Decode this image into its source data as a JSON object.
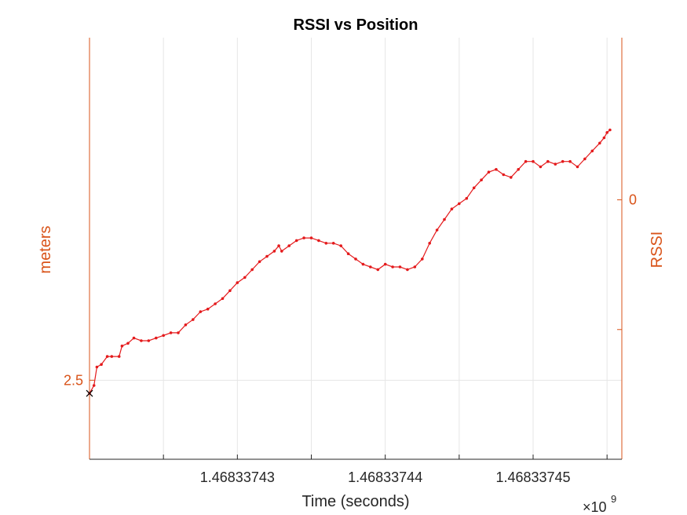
{
  "chart_data": {
    "type": "line",
    "title": "RSSI vs Position",
    "xlabel": "Time (seconds)",
    "x_exponent_base": "×10",
    "x_exponent_power": "9",
    "ylabel_left": "meters",
    "ylabel_right": "RSSI",
    "xlim": [
      1.46833742,
      1.468337456
    ],
    "x_ticks": [
      1.468337425,
      1.46833743,
      1.468337435,
      1.46833744,
      1.468337445,
      1.46833745,
      1.468337455
    ],
    "x_tick_labels": [
      "",
      "1.46833743",
      "",
      "1.46833744",
      "",
      "1.46833745",
      ""
    ],
    "left_ylim": [
      2.2,
      3.8
    ],
    "left_ticks": [
      2.5
    ],
    "left_tick_labels": [
      "2.5"
    ],
    "right_ylim": [
      -2.0,
      1.25
    ],
    "right_ticks": [
      -1,
      0
    ],
    "right_tick_labels": [
      "",
      "0"
    ],
    "grid": true,
    "colors": {
      "series": "#e41a1c",
      "axis_left": "#d95319",
      "axis_right": "#d95319",
      "grid": "#e6e6e6",
      "marker": "#000000"
    },
    "series": [
      {
        "points": [
          [
            1.46833742,
            2.45
          ],
          [
            1.4683374203,
            2.48
          ],
          [
            1.4683374205,
            2.55
          ],
          [
            1.4683374208,
            2.56
          ],
          [
            1.4683374212,
            2.59
          ],
          [
            1.4683374215,
            2.59
          ],
          [
            1.468337422,
            2.59
          ],
          [
            1.4683374222,
            2.63
          ],
          [
            1.4683374226,
            2.64
          ],
          [
            1.468337423,
            2.66
          ],
          [
            1.4683374235,
            2.65
          ],
          [
            1.468337424,
            2.65
          ],
          [
            1.4683374245,
            2.66
          ],
          [
            1.468337425,
            2.67
          ],
          [
            1.4683374255,
            2.68
          ],
          [
            1.468337426,
            2.68
          ],
          [
            1.4683374265,
            2.71
          ],
          [
            1.468337427,
            2.73
          ],
          [
            1.4683374275,
            2.76
          ],
          [
            1.468337428,
            2.77
          ],
          [
            1.4683374285,
            2.79
          ],
          [
            1.468337429,
            2.81
          ],
          [
            1.4683374295,
            2.84
          ],
          [
            1.46833743,
            2.87
          ],
          [
            1.4683374305,
            2.89
          ],
          [
            1.468337431,
            2.92
          ],
          [
            1.4683374315,
            2.95
          ],
          [
            1.468337432,
            2.97
          ],
          [
            1.4683374325,
            2.99
          ],
          [
            1.4683374328,
            3.01
          ],
          [
            1.468337433,
            2.99
          ],
          [
            1.4683374335,
            3.01
          ],
          [
            1.468337434,
            3.03
          ],
          [
            1.4683374345,
            3.04
          ],
          [
            1.468337435,
            3.04
          ],
          [
            1.4683374355,
            3.03
          ],
          [
            1.468337436,
            3.02
          ],
          [
            1.4683374365,
            3.02
          ],
          [
            1.468337437,
            3.01
          ],
          [
            1.4683374375,
            2.98
          ],
          [
            1.468337438,
            2.96
          ],
          [
            1.4683374385,
            2.94
          ],
          [
            1.468337439,
            2.93
          ],
          [
            1.4683374395,
            2.92
          ],
          [
            1.46833744,
            2.94
          ],
          [
            1.4683374405,
            2.93
          ],
          [
            1.468337441,
            2.93
          ],
          [
            1.4683374415,
            2.92
          ],
          [
            1.468337442,
            2.93
          ],
          [
            1.4683374425,
            2.96
          ],
          [
            1.468337443,
            3.02
          ],
          [
            1.4683374435,
            3.07
          ],
          [
            1.468337444,
            3.11
          ],
          [
            1.4683374445,
            3.15
          ],
          [
            1.468337445,
            3.17
          ],
          [
            1.4683374455,
            3.19
          ],
          [
            1.468337446,
            3.23
          ],
          [
            1.4683374465,
            3.26
          ],
          [
            1.468337447,
            3.29
          ],
          [
            1.4683374475,
            3.3
          ],
          [
            1.468337448,
            3.28
          ],
          [
            1.4683374485,
            3.27
          ],
          [
            1.468337449,
            3.3
          ],
          [
            1.4683374495,
            3.33
          ],
          [
            1.46833745,
            3.33
          ],
          [
            1.4683374505,
            3.31
          ],
          [
            1.468337451,
            3.33
          ],
          [
            1.4683374515,
            3.32
          ],
          [
            1.468337452,
            3.33
          ],
          [
            1.4683374525,
            3.33
          ],
          [
            1.468337453,
            3.31
          ],
          [
            1.4683374535,
            3.34
          ],
          [
            1.468337454,
            3.37
          ],
          [
            1.4683374545,
            3.4
          ],
          [
            1.4683374548,
            3.42
          ],
          [
            1.468337455,
            3.44
          ],
          [
            1.4683374552,
            3.45
          ]
        ]
      }
    ],
    "markers": [
      {
        "x": 1.46833742,
        "y": 2.45,
        "symbol": "x"
      }
    ]
  }
}
